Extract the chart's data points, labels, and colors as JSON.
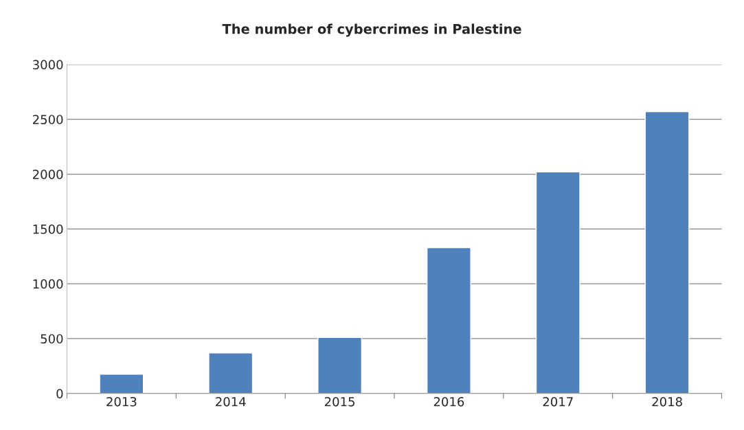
{
  "chart_data": {
    "type": "bar",
    "title": "The number of cybercrimes in Palestine",
    "categories": [
      "2013",
      "2014",
      "2015",
      "2016",
      "2017",
      "2018"
    ],
    "values": [
      175,
      370,
      510,
      1330,
      2020,
      2570
    ],
    "color": "#4f81bd",
    "ylim": [
      0,
      3000
    ],
    "yticks": [
      0,
      500,
      1000,
      1500,
      2000,
      2500,
      3000
    ],
    "grid": "y",
    "legend": false
  }
}
